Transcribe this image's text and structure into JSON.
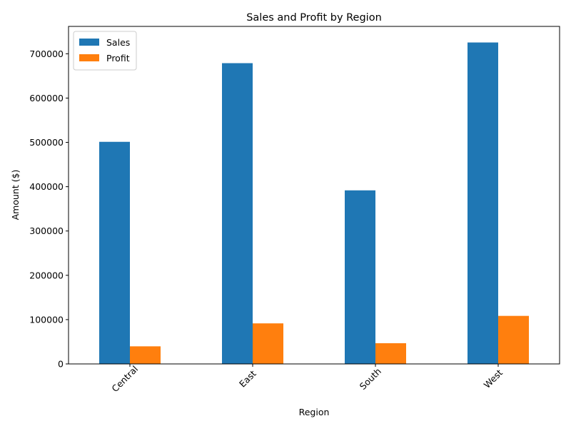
{
  "chart_data": {
    "type": "bar",
    "title": "Sales and Profit by Region",
    "xlabel": "Region",
    "ylabel": "Amount ($)",
    "categories": [
      "Central",
      "East",
      "South",
      "West"
    ],
    "series": [
      {
        "name": "Sales",
        "values": [
          501240,
          678781,
          391722,
          725458
        ],
        "color": "#1f77b4"
      },
      {
        "name": "Profit",
        "values": [
          39706,
          91523,
          46749,
          108418
        ],
        "color": "#ff7f0e"
      }
    ],
    "ylim": [
      0,
      761731
    ],
    "yticks": [
      0,
      100000,
      200000,
      300000,
      400000,
      500000,
      600000,
      700000
    ],
    "xtick_rotation": 45,
    "legend": "top-left",
    "grid": false
  }
}
